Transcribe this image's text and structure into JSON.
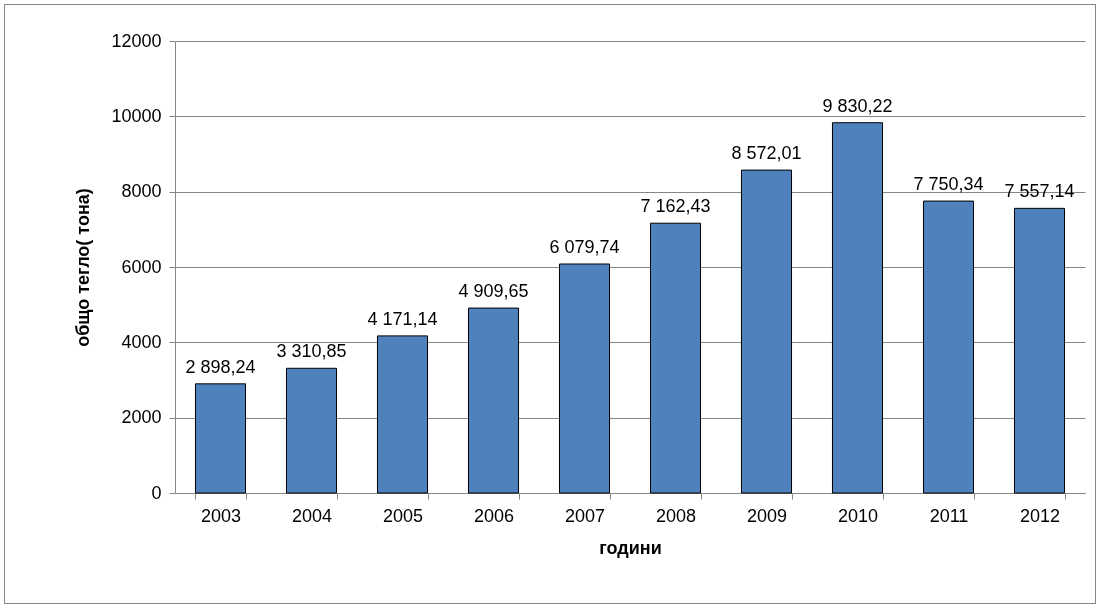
{
  "chart_data": {
    "type": "bar",
    "xlabel": "години",
    "ylabel": "общо тегло( тона)",
    "categories": [
      "2003",
      "2004",
      "2005",
      "2006",
      "2007",
      "2008",
      "2009",
      "2010",
      "2011",
      "2012"
    ],
    "values": [
      2898.24,
      3310.85,
      4171.14,
      4909.65,
      6079.74,
      7162.43,
      8572.01,
      9830.22,
      7750.34,
      7557.14
    ],
    "value_labels": [
      "2 898,24",
      "3 310,85",
      "4 171,14",
      "4 909,65",
      "6 079,74",
      "7 162,43",
      "8 572,01",
      "9 830,22",
      "7 750,34",
      "7 557,14"
    ],
    "color": "#4f81bd",
    "ylim": [
      0,
      12000
    ],
    "yticks": [
      0,
      2000,
      4000,
      6000,
      8000,
      10000,
      12000
    ],
    "grid": "y"
  }
}
